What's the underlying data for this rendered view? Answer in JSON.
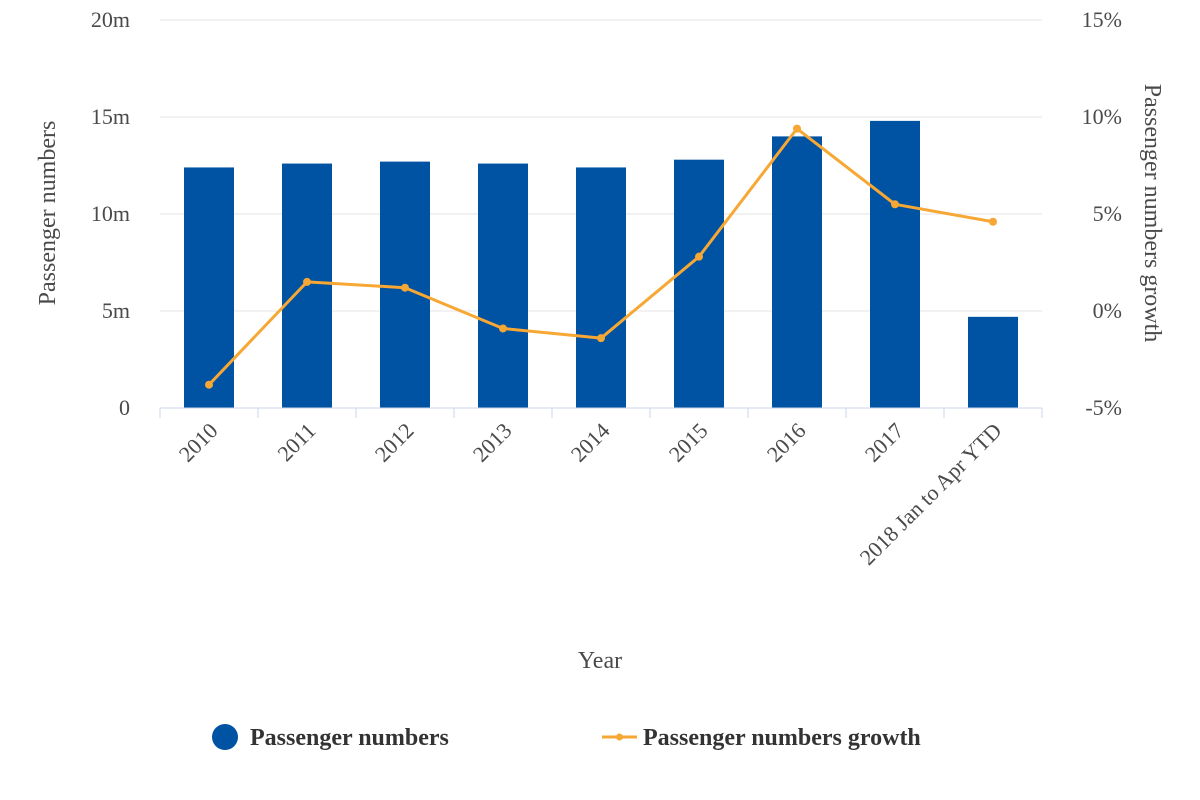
{
  "chart_data": {
    "type": "bar",
    "title": "",
    "xlabel": "Year",
    "ylabel": "Passenger numbers",
    "y2label": "Passenger numbers growth",
    "categories": [
      "2010",
      "2011",
      "2012",
      "2013",
      "2014",
      "2015",
      "2016",
      "2017",
      "2018 Jan to Apr YTD"
    ],
    "ylim": [
      0,
      20
    ],
    "yticks": [
      0,
      5,
      10,
      15,
      20
    ],
    "ytick_labels": [
      "0",
      "5m",
      "10m",
      "15m",
      "20m"
    ],
    "y2lim": [
      -5,
      15
    ],
    "y2ticks": [
      -5,
      0,
      5,
      10,
      15
    ],
    "y2tick_labels": [
      "-5%",
      "0%",
      "5%",
      "10%",
      "15%"
    ],
    "grid": true,
    "legend_position": "bottom",
    "series": [
      {
        "name": "Passenger numbers",
        "type": "bar",
        "axis": "left",
        "unit": "millions",
        "color": "#0052a3",
        "values": [
          12.4,
          12.6,
          12.7,
          12.6,
          12.4,
          12.8,
          14.0,
          14.8,
          4.7
        ]
      },
      {
        "name": "Passenger numbers growth",
        "type": "line",
        "axis": "right",
        "unit": "percent",
        "color": "#f7a733",
        "values": [
          -3.8,
          1.5,
          1.2,
          -0.9,
          -1.4,
          2.8,
          9.4,
          5.5,
          4.6
        ]
      }
    ]
  }
}
